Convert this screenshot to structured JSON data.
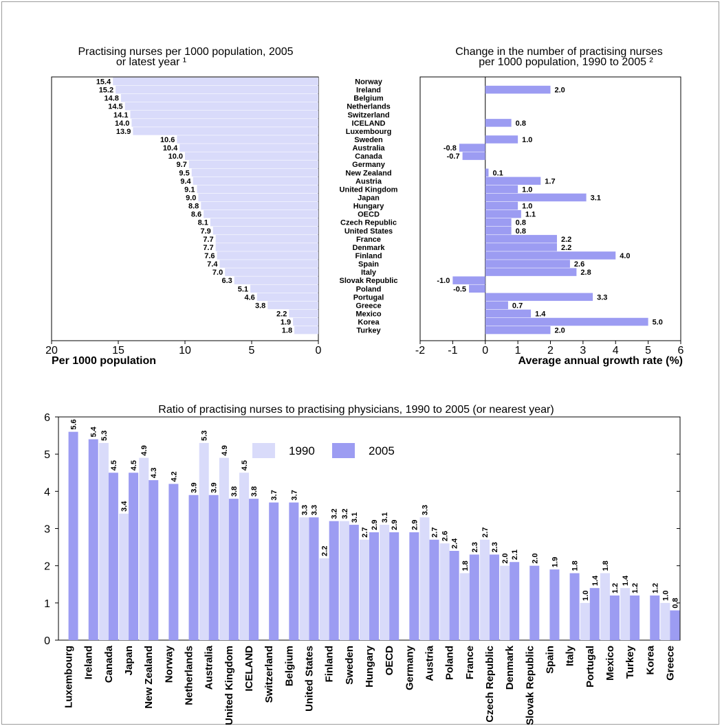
{
  "colors": {
    "light": "#d9dbfa",
    "dark": "#9c9cf2",
    "axis": "#000000"
  },
  "chart_data": [
    {
      "id": "density",
      "type": "bar",
      "orientation": "horizontal",
      "title_line1": "Practising nurses per 1000 population, 2005",
      "title_line2": "or latest year ¹",
      "xlabel": "Per 1000 population",
      "x_reversed": true,
      "xlim": [
        0,
        20
      ],
      "xticks": [
        "20",
        "15",
        "10",
        "5",
        "0"
      ],
      "categories": [
        "Norway",
        "Ireland",
        "Belgium",
        "Netherlands",
        "Switzerland",
        "ICELAND",
        "Luxembourg",
        "Sweden",
        "Australia",
        "Canada",
        "Germany",
        "New Zealand",
        "Austria",
        "United Kingdom",
        "Japan",
        "Hungary",
        "OECD",
        "Czech Republic",
        "United States",
        "France",
        "Denmark",
        "Finland",
        "Spain",
        "Italy",
        "Slovak Republic",
        "Poland",
        "Portugal",
        "Greece",
        "Mexico",
        "Korea",
        "Turkey"
      ],
      "values": [
        15.4,
        15.2,
        14.8,
        14.5,
        14.1,
        14.0,
        13.9,
        10.6,
        10.4,
        10.0,
        9.7,
        9.5,
        9.4,
        9.1,
        9.0,
        8.8,
        8.6,
        8.1,
        7.9,
        7.7,
        7.7,
        7.6,
        7.4,
        7.0,
        6.3,
        5.1,
        4.6,
        3.8,
        2.2,
        1.9,
        1.8
      ],
      "labels": [
        "15.4",
        "15.2",
        "14.8",
        "14.5",
        "14.1",
        "14.0",
        "13.9",
        "10.6",
        "10.4",
        "10.0",
        "9.7",
        "9.5",
        "9.4",
        "9.1",
        "9.0",
        "8.8",
        "8.6",
        "8.1",
        "7.9",
        "7.7",
        "7.7",
        "7.6",
        "7.4",
        "7.0",
        "6.3",
        "5.1",
        "4.6",
        "3.8",
        "2.2",
        "1.9",
        "1.8"
      ]
    },
    {
      "id": "growth",
      "type": "bar",
      "orientation": "horizontal",
      "title_line1": "Change in the number of practising nurses",
      "title_line2": "per 1000 population, 1990 to 2005 ²",
      "xlabel": "Average annual growth rate (%)",
      "xlim": [
        -2,
        6
      ],
      "xticks": [
        "-2",
        "-1",
        "0",
        "1",
        "2",
        "3",
        "4",
        "5",
        "6"
      ],
      "categories": [
        "Norway",
        "Ireland",
        "Belgium",
        "Netherlands",
        "Switzerland",
        "ICELAND",
        "Luxembourg",
        "Sweden",
        "Australia",
        "Canada",
        "Germany",
        "New Zealand",
        "Austria",
        "United Kingdom",
        "Japan",
        "Hungary",
        "OECD",
        "Czech Republic",
        "United States",
        "France",
        "Denmark",
        "Finland",
        "Spain",
        "Italy",
        "Slovak Republic",
        "Poland",
        "Portugal",
        "Greece",
        "Mexico",
        "Korea",
        "Turkey"
      ],
      "values": [
        null,
        2.0,
        null,
        null,
        null,
        0.8,
        null,
        1.0,
        -0.8,
        -0.7,
        null,
        0.1,
        1.7,
        1.0,
        3.1,
        1.0,
        1.1,
        0.8,
        0.8,
        2.2,
        2.2,
        4.0,
        2.6,
        2.8,
        -1.0,
        -0.5,
        3.3,
        0.7,
        1.4,
        5.0,
        2.0
      ],
      "labels": [
        "",
        "2.0",
        "",
        "",
        "",
        "0.8",
        "",
        "1.0",
        "-0.8",
        "-0.7",
        "",
        "0.1",
        "1.7",
        "1.0",
        "3.1",
        "1.0",
        "1.1",
        "0.8",
        "0.8",
        "2.2",
        "2.2",
        "4.0",
        "2.6",
        "2.8",
        "-1.0",
        "-0.5",
        "3.3",
        "0.7",
        "1.4",
        "5.0",
        "2.0"
      ]
    },
    {
      "id": "ratio",
      "type": "bar",
      "title": "Ratio of practising nurses to practising physicians, 1990 to 2005 (or nearest year)",
      "ylim": [
        0,
        6
      ],
      "yticks": [
        "0",
        "1",
        "2",
        "3",
        "4",
        "5",
        "6"
      ],
      "categories": [
        "Luxembourg",
        "Ireland",
        "Canada",
        "Japan",
        "New Zealand",
        "Norway",
        "Netherlands",
        "Australia",
        "United Kingdom",
        "ICELAND",
        "Switzerland",
        "Belgium",
        "United States",
        "Finland",
        "Sweden",
        "Hungary",
        "OECD",
        "Germany",
        "Austria",
        "Poland",
        "France",
        "Czech Republic",
        "Denmark",
        "Slovak Republic",
        "Spain",
        "Italy",
        "Portugal",
        "Mexico",
        "Turkey",
        "Korea",
        "Greece"
      ],
      "series": [
        {
          "name": "1990",
          "values": [
            null,
            null,
            5.3,
            3.4,
            4.9,
            null,
            null,
            5.3,
            4.9,
            4.5,
            null,
            null,
            3.3,
            2.2,
            3.2,
            2.7,
            3.1,
            null,
            3.3,
            2.6,
            1.8,
            2.7,
            2.0,
            null,
            null,
            null,
            1.0,
            1.8,
            1.4,
            null,
            1.0
          ],
          "labels": [
            "",
            "",
            "5.3",
            "3.4",
            "4.9",
            "",
            "",
            "5.3",
            "4.9",
            "4.5",
            "",
            "",
            "3.3",
            "2.2",
            "3.2",
            "2.7",
            "3.1",
            "",
            "3.3",
            "2.6",
            "1.8",
            "2.7",
            "2.0",
            "",
            "",
            "",
            "1.0",
            "1.8",
            "1.4",
            "",
            "1.0"
          ]
        },
        {
          "name": "2005",
          "values": [
            5.6,
            5.4,
            4.5,
            4.5,
            4.3,
            4.2,
            3.9,
            3.9,
            3.8,
            3.8,
            3.7,
            3.7,
            3.3,
            3.2,
            3.1,
            2.9,
            2.9,
            2.9,
            2.7,
            2.4,
            2.3,
            2.3,
            2.1,
            2.0,
            1.9,
            1.8,
            1.4,
            1.2,
            1.2,
            1.2,
            0.8
          ],
          "labels": [
            "5.6",
            "5.4",
            "4.5",
            "4.5",
            "4.3",
            "4.2",
            "3.9",
            "3.9",
            "3.8",
            "3.8",
            "3.7",
            "3.7",
            "3.3",
            "3.2",
            "3.1",
            "2.9",
            "2.9",
            "2.9",
            "2.7",
            "2.4",
            "2.3",
            "2.3",
            "2.1",
            "2.0",
            "1.9",
            "1.8",
            "1.4",
            "1.2",
            "1.2",
            "1.2",
            "0.8"
          ]
        }
      ]
    }
  ]
}
